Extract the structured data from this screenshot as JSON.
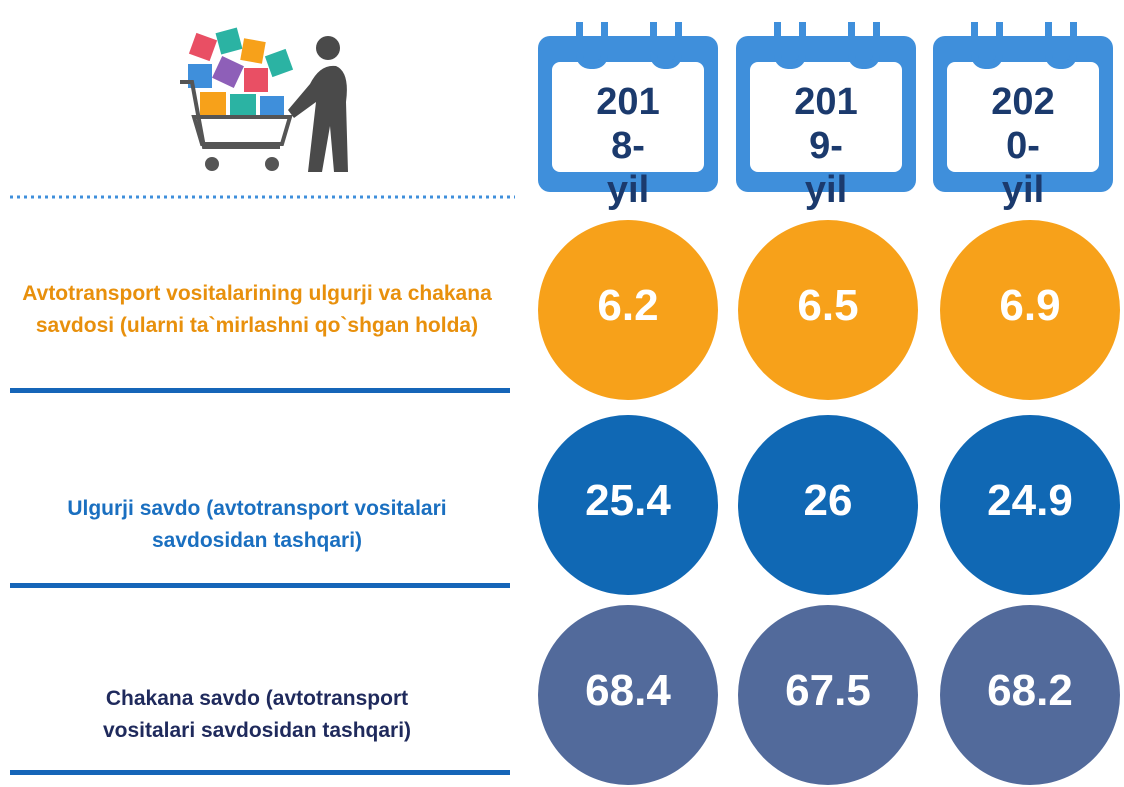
{
  "years": [
    "2018-yil",
    "2019-yil",
    "2020-yil"
  ],
  "rows": [
    {
      "label": "Avtotransport vositalarining ulgurji va chakana savdosi (ularni ta`mirlashni qo`shgan holda)",
      "values": [
        6.2,
        6.5,
        6.9
      ]
    },
    {
      "label": "Ulgurji savdo (avtotransport vositalari savdosidan tashqari)",
      "values": [
        25.4,
        26,
        24.9
      ]
    },
    {
      "label": "Chakana savdo (avtotransport vositalari savdosidan tashqari)",
      "values": [
        68.4,
        67.5,
        68.2
      ]
    }
  ]
}
